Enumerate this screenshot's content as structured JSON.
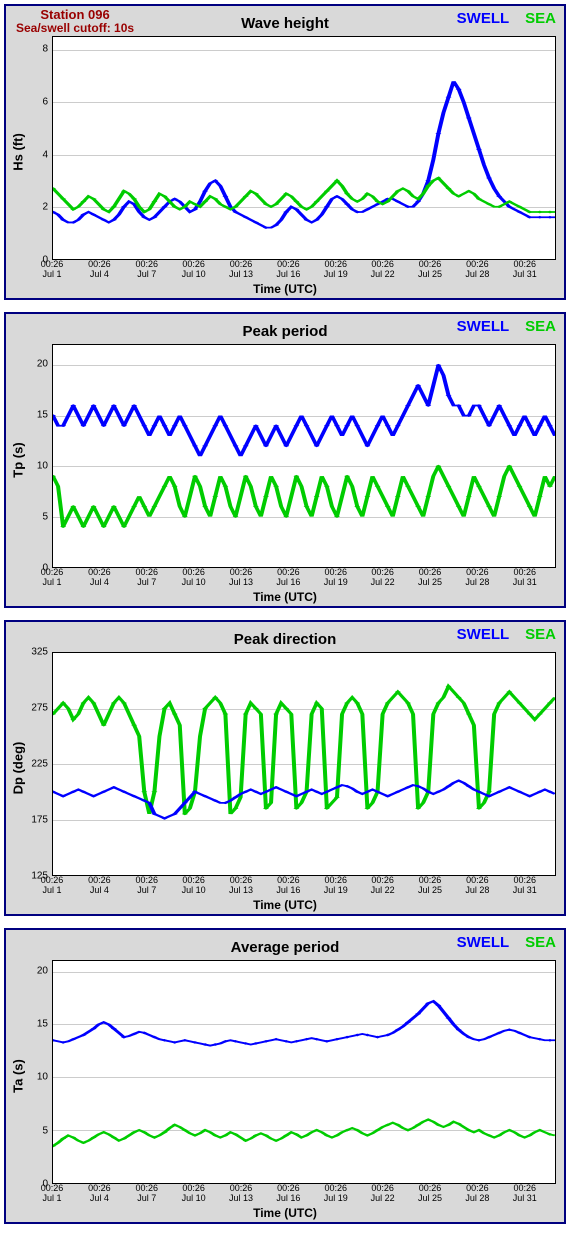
{
  "station": {
    "title": "Station 096",
    "subtitle": "Sea/swell cutoff: 10s",
    "title_color": "#990000",
    "title_fontsize": 13
  },
  "common": {
    "x_label": "Time (UTC)",
    "x_ticks": [
      {
        "pos": 0.0,
        "time": "00:26",
        "date": "Jul 1"
      },
      {
        "pos": 0.094,
        "time": "00:26",
        "date": "Jul 4"
      },
      {
        "pos": 0.188,
        "time": "00:26",
        "date": "Jul 7"
      },
      {
        "pos": 0.281,
        "time": "00:26",
        "date": "Jul 10"
      },
      {
        "pos": 0.375,
        "time": "00:26",
        "date": "Jul 13"
      },
      {
        "pos": 0.469,
        "time": "00:26",
        "date": "Jul 16"
      },
      {
        "pos": 0.563,
        "time": "00:26",
        "date": "Jul 19"
      },
      {
        "pos": 0.656,
        "time": "00:26",
        "date": "Jul 22"
      },
      {
        "pos": 0.75,
        "time": "00:26",
        "date": "Jul 25"
      },
      {
        "pos": 0.844,
        "time": "00:26",
        "date": "Jul 28"
      },
      {
        "pos": 0.938,
        "time": "00:26",
        "date": "Jul 31"
      }
    ],
    "legend": [
      {
        "label": "SWELL",
        "color": "#0000ff"
      },
      {
        "label": "SEA",
        "color": "#00cc00"
      }
    ],
    "background_color": "#d9d9d9",
    "plot_bg": "#ffffff",
    "border_color": "#000080",
    "grid_color": "#cccccc",
    "line_width": 1.5,
    "marker": "diamond",
    "marker_size": 3
  },
  "panels": [
    {
      "id": "wave-height",
      "title": "Wave height",
      "y_label": "Hs (ft)",
      "ylim": [
        0,
        8.5
      ],
      "y_ticks": [
        0,
        2,
        4,
        6,
        8
      ],
      "show_station": true,
      "series": [
        {
          "name": "swell",
          "color": "#0000ff",
          "y": [
            1.8,
            1.7,
            1.5,
            1.4,
            1.4,
            1.5,
            1.7,
            1.8,
            1.7,
            1.6,
            1.5,
            1.4,
            1.5,
            1.7,
            2.0,
            2.2,
            2.1,
            1.8,
            1.6,
            1.5,
            1.6,
            1.8,
            2.0,
            2.2,
            2.3,
            2.2,
            2.0,
            1.8,
            1.9,
            2.2,
            2.6,
            2.9,
            3.0,
            2.8,
            2.4,
            2.0,
            1.8,
            1.7,
            1.6,
            1.5,
            1.4,
            1.3,
            1.2,
            1.2,
            1.3,
            1.5,
            1.8,
            2.0,
            1.9,
            1.7,
            1.5,
            1.4,
            1.5,
            1.7,
            2.0,
            2.3,
            2.4,
            2.3,
            2.1,
            1.9,
            1.8,
            1.8,
            1.9,
            2.0,
            2.1,
            2.2,
            2.3,
            2.3,
            2.2,
            2.1,
            2.0,
            2.0,
            2.2,
            2.5,
            3.0,
            3.8,
            4.8,
            5.6,
            6.2,
            6.8,
            6.5,
            6.0,
            5.4,
            4.8,
            4.2,
            3.6,
            3.1,
            2.7,
            2.4,
            2.2,
            2.0,
            1.9,
            1.8,
            1.7,
            1.6,
            1.6,
            1.6,
            1.6,
            1.6,
            1.6
          ]
        },
        {
          "name": "sea",
          "color": "#00cc00",
          "y": [
            2.7,
            2.5,
            2.3,
            2.1,
            1.9,
            2.0,
            2.2,
            2.4,
            2.3,
            2.1,
            1.9,
            1.8,
            2.0,
            2.3,
            2.6,
            2.5,
            2.3,
            2.0,
            1.8,
            1.9,
            2.2,
            2.5,
            2.4,
            2.2,
            2.0,
            1.9,
            2.0,
            2.2,
            2.1,
            2.0,
            2.2,
            2.4,
            2.3,
            2.1,
            2.0,
            1.9,
            2.0,
            2.2,
            2.4,
            2.6,
            2.5,
            2.3,
            2.1,
            2.0,
            2.1,
            2.3,
            2.5,
            2.4,
            2.2,
            2.0,
            1.9,
            2.0,
            2.2,
            2.4,
            2.6,
            2.8,
            3.0,
            2.8,
            2.5,
            2.3,
            2.2,
            2.3,
            2.5,
            2.4,
            2.2,
            2.1,
            2.2,
            2.4,
            2.6,
            2.7,
            2.6,
            2.4,
            2.3,
            2.5,
            2.8,
            3.0,
            3.1,
            2.9,
            2.7,
            2.5,
            2.4,
            2.5,
            2.6,
            2.5,
            2.3,
            2.2,
            2.1,
            2.0,
            2.0,
            2.1,
            2.2,
            2.1,
            2.0,
            1.9,
            1.8,
            1.8,
            1.8,
            1.8,
            1.8,
            1.8
          ]
        }
      ]
    },
    {
      "id": "peak-period",
      "title": "Peak period",
      "y_label": "Tp (s)",
      "ylim": [
        0,
        22
      ],
      "y_ticks": [
        0,
        5,
        10,
        15,
        20
      ],
      "show_station": false,
      "series": [
        {
          "name": "swell",
          "color": "#0000ff",
          "y": [
            15,
            14,
            14,
            15,
            16,
            15,
            14,
            15,
            16,
            15,
            14,
            15,
            16,
            15,
            14,
            15,
            16,
            15,
            14,
            13,
            14,
            15,
            14,
            13,
            14,
            15,
            14,
            13,
            12,
            11,
            12,
            13,
            14,
            15,
            14,
            13,
            12,
            11,
            12,
            13,
            14,
            13,
            12,
            13,
            14,
            13,
            12,
            13,
            14,
            15,
            14,
            13,
            12,
            13,
            14,
            15,
            14,
            13,
            14,
            15,
            14,
            13,
            12,
            13,
            14,
            15,
            14,
            13,
            14,
            15,
            16,
            17,
            18,
            17,
            16,
            18,
            20,
            19,
            17,
            16,
            16,
            15,
            15,
            16,
            16,
            15,
            14,
            15,
            16,
            15,
            14,
            13,
            14,
            15,
            14,
            13,
            14,
            15,
            14,
            13
          ]
        },
        {
          "name": "sea",
          "color": "#00cc00",
          "y": [
            9,
            8,
            4,
            5,
            6,
            5,
            4,
            5,
            6,
            5,
            4,
            5,
            6,
            5,
            4,
            5,
            6,
            7,
            6,
            5,
            6,
            7,
            8,
            9,
            8,
            6,
            5,
            7,
            9,
            8,
            6,
            5,
            7,
            9,
            8,
            6,
            5,
            7,
            9,
            8,
            6,
            5,
            7,
            9,
            8,
            6,
            5,
            7,
            9,
            8,
            6,
            5,
            7,
            9,
            8,
            6,
            5,
            7,
            9,
            8,
            6,
            5,
            7,
            9,
            8,
            7,
            6,
            5,
            7,
            9,
            8,
            7,
            6,
            5,
            7,
            9,
            10,
            9,
            8,
            7,
            6,
            5,
            7,
            9,
            8,
            7,
            6,
            5,
            7,
            9,
            10,
            9,
            8,
            7,
            6,
            5,
            7,
            9,
            8,
            9
          ]
        }
      ]
    },
    {
      "id": "peak-direction",
      "title": "Peak direction",
      "y_label": "Dp (deg)",
      "ylim": [
        125,
        325
      ],
      "y_ticks": [
        125,
        175,
        225,
        275,
        325
      ],
      "show_station": false,
      "series": [
        {
          "name": "sea",
          "color": "#00cc00",
          "y": [
            270,
            275,
            280,
            275,
            265,
            270,
            280,
            285,
            280,
            270,
            260,
            270,
            280,
            285,
            280,
            270,
            260,
            250,
            200,
            180,
            200,
            250,
            275,
            280,
            270,
            260,
            180,
            185,
            200,
            250,
            275,
            280,
            285,
            280,
            270,
            180,
            185,
            195,
            270,
            280,
            275,
            270,
            185,
            190,
            270,
            280,
            275,
            270,
            185,
            190,
            200,
            270,
            280,
            275,
            185,
            190,
            195,
            270,
            280,
            285,
            280,
            270,
            185,
            190,
            200,
            270,
            280,
            285,
            290,
            285,
            280,
            270,
            185,
            190,
            200,
            270,
            280,
            285,
            295,
            290,
            285,
            280,
            270,
            260,
            185,
            190,
            200,
            270,
            280,
            285,
            290,
            285,
            280,
            275,
            270,
            265,
            270,
            275,
            280,
            285
          ]
        },
        {
          "name": "swell",
          "color": "#0000ff",
          "y": [
            200,
            198,
            196,
            198,
            200,
            202,
            200,
            198,
            196,
            198,
            200,
            202,
            204,
            202,
            200,
            198,
            196,
            194,
            192,
            190,
            180,
            178,
            176,
            178,
            180,
            185,
            190,
            195,
            200,
            198,
            196,
            194,
            192,
            190,
            190,
            192,
            195,
            198,
            200,
            202,
            200,
            198,
            200,
            202,
            204,
            202,
            200,
            198,
            196,
            198,
            200,
            202,
            200,
            198,
            200,
            202,
            204,
            206,
            205,
            203,
            200,
            198,
            200,
            202,
            200,
            198,
            196,
            198,
            200,
            202,
            204,
            206,
            205,
            203,
            200,
            198,
            200,
            202,
            205,
            208,
            210,
            208,
            205,
            202,
            200,
            198,
            196,
            198,
            200,
            202,
            204,
            202,
            200,
            198,
            196,
            198,
            200,
            202,
            200,
            198
          ]
        }
      ]
    },
    {
      "id": "average-period",
      "title": "Average period",
      "y_label": "Ta (s)",
      "ylim": [
        0,
        21
      ],
      "y_ticks": [
        0,
        5,
        10,
        15,
        20
      ],
      "show_station": false,
      "series": [
        {
          "name": "swell",
          "color": "#0000ff",
          "y": [
            13.5,
            13.4,
            13.3,
            13.4,
            13.6,
            13.8,
            14.0,
            14.3,
            14.6,
            15.0,
            15.2,
            15.0,
            14.6,
            14.2,
            13.8,
            13.9,
            14.1,
            14.3,
            14.2,
            14.0,
            13.8,
            13.6,
            13.5,
            13.4,
            13.3,
            13.4,
            13.5,
            13.4,
            13.3,
            13.2,
            13.1,
            13.0,
            13.1,
            13.2,
            13.4,
            13.5,
            13.4,
            13.3,
            13.2,
            13.1,
            13.2,
            13.3,
            13.4,
            13.5,
            13.6,
            13.5,
            13.4,
            13.3,
            13.4,
            13.5,
            13.6,
            13.7,
            13.6,
            13.5,
            13.4,
            13.5,
            13.6,
            13.7,
            13.8,
            13.9,
            14.0,
            14.1,
            14.0,
            13.9,
            13.8,
            13.9,
            14.0,
            14.2,
            14.5,
            14.8,
            15.2,
            15.6,
            16.0,
            16.5,
            17.0,
            17.2,
            16.8,
            16.2,
            15.6,
            15.0,
            14.5,
            14.1,
            13.8,
            13.6,
            13.5,
            13.6,
            13.8,
            14.0,
            14.2,
            14.4,
            14.5,
            14.4,
            14.2,
            14.0,
            13.8,
            13.7,
            13.6,
            13.5,
            13.5,
            13.5
          ]
        },
        {
          "name": "sea",
          "color": "#00cc00",
          "y": [
            3.5,
            3.8,
            4.2,
            4.5,
            4.3,
            4.0,
            3.8,
            4.0,
            4.3,
            4.6,
            4.8,
            4.6,
            4.3,
            4.0,
            4.2,
            4.5,
            4.8,
            5.0,
            4.8,
            4.5,
            4.3,
            4.5,
            4.8,
            5.2,
            5.5,
            5.3,
            5.0,
            4.7,
            4.5,
            4.7,
            5.0,
            4.8,
            4.5,
            4.3,
            4.5,
            4.8,
            4.6,
            4.3,
            4.0,
            4.2,
            4.5,
            4.7,
            4.5,
            4.2,
            4.0,
            4.2,
            4.5,
            4.8,
            4.6,
            4.3,
            4.5,
            4.8,
            5.0,
            4.8,
            4.5,
            4.3,
            4.5,
            4.8,
            5.0,
            5.2,
            5.0,
            4.7,
            4.5,
            4.7,
            5.0,
            5.3,
            5.5,
            5.7,
            5.5,
            5.2,
            5.0,
            5.2,
            5.5,
            5.8,
            6.0,
            5.8,
            5.5,
            5.3,
            5.5,
            5.8,
            5.6,
            5.3,
            5.0,
            4.8,
            5.0,
            4.7,
            4.5,
            4.3,
            4.5,
            4.8,
            5.0,
            4.8,
            4.5,
            4.3,
            4.5,
            4.8,
            5.0,
            4.8,
            4.6,
            4.5
          ]
        }
      ]
    }
  ]
}
